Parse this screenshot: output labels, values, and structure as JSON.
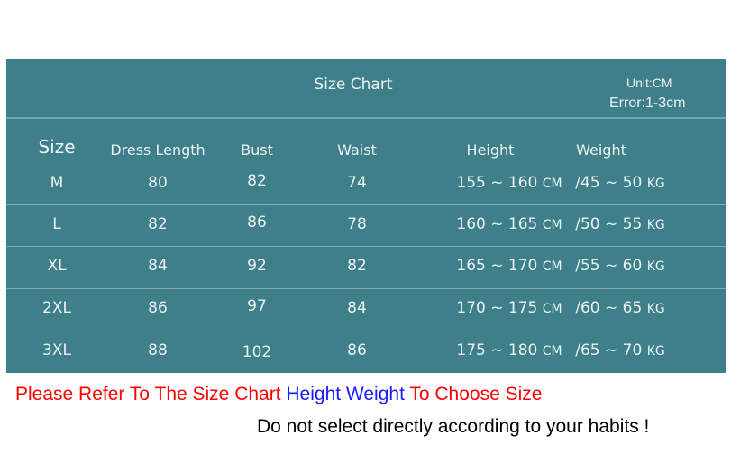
{
  "title": "Size Chart",
  "unit": "Unit:CM",
  "error": "Error:1-3cm",
  "columns": [
    "Size",
    "Dress Length",
    "Bust",
    "Waist",
    "Height",
    "Weight"
  ],
  "rows": [
    {
      "size": "M",
      "length": "80",
      "bust": "82",
      "waist": "74",
      "height": "155 ~ 160",
      "height_unit": "CM",
      "weight": "/45 ~ 50",
      "weight_unit": "KG"
    },
    {
      "size": "L",
      "length": "82",
      "bust": "86",
      "waist": "78",
      "height": "160 ~ 165",
      "height_unit": "CM",
      "weight": "/50 ~ 55",
      "weight_unit": "KG"
    },
    {
      "size": "XL",
      "length": "84",
      "bust": "92",
      "waist": "82",
      "height": "165 ~ 170",
      "height_unit": "CM",
      "weight": "/55 ~ 60",
      "weight_unit": "KG"
    },
    {
      "size": "2XL",
      "length": "86",
      "bust": "97",
      "waist": "84",
      "height": "170 ~ 175",
      "height_unit": "CM",
      "weight": "/60 ~ 65",
      "weight_unit": "KG"
    },
    {
      "size": "3XL",
      "length": "88",
      "bust": "102",
      "waist": "86",
      "height": "175 ~ 180",
      "height_unit": "CM",
      "weight": "/65 ~ 70",
      "weight_unit": "KG"
    }
  ],
  "notes": {
    "part1": "Please Refer To The Size Chart ",
    "part2": "Height Weight",
    "part3": " To Choose Size",
    "line2": "Do not select directly according to your habits !"
  },
  "colors": {
    "table_bg": "#3f7f8a",
    "note_red": "#ff0000",
    "note_blue": "#1a1aff"
  }
}
